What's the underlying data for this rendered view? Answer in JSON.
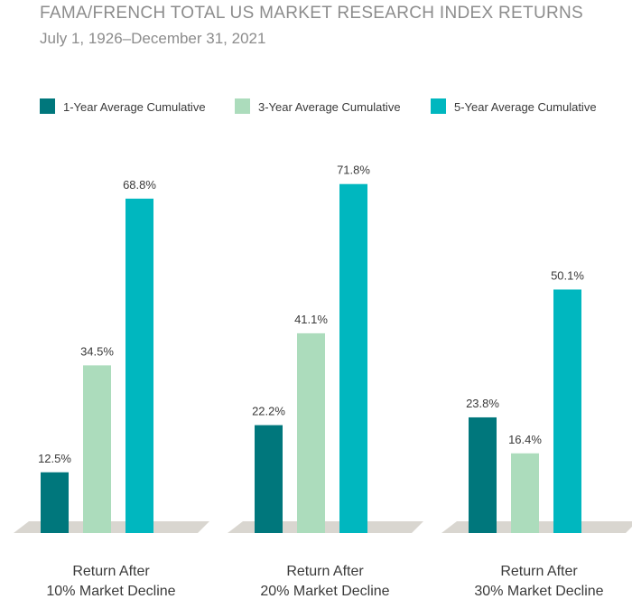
{
  "chart_data": {
    "type": "bar",
    "title": "FAMA/FRENCH TOTAL US MARKET RESEARCH INDEX RETURNS",
    "subtitle": "July 1, 1926–December 31, 2021",
    "categories": [
      [
        "Return After",
        "10% Market Decline"
      ],
      [
        "Return After",
        "20% Market Decline"
      ],
      [
        "Return After",
        "30% Market Decline"
      ]
    ],
    "series": [
      {
        "name": "1-Year Average Cumulative",
        "color": "#00777c",
        "values": [
          12.5,
          22.2,
          23.8
        ],
        "labels": [
          "12.5%",
          "22.2%",
          "23.8%"
        ]
      },
      {
        "name": "3-Year Average Cumulative",
        "color": "#acdcbc",
        "values": [
          34.5,
          41.1,
          16.4
        ],
        "labels": [
          "34.5%",
          "41.1%",
          "16.4%"
        ]
      },
      {
        "name": "5-Year Average Cumulative",
        "color": "#00b7bf",
        "values": [
          68.8,
          71.8,
          50.1
        ],
        "labels": [
          "68.8%",
          "71.8%",
          "50.1%"
        ]
      }
    ],
    "ylim": [
      0,
      80
    ],
    "grid": false,
    "legend": "top"
  }
}
